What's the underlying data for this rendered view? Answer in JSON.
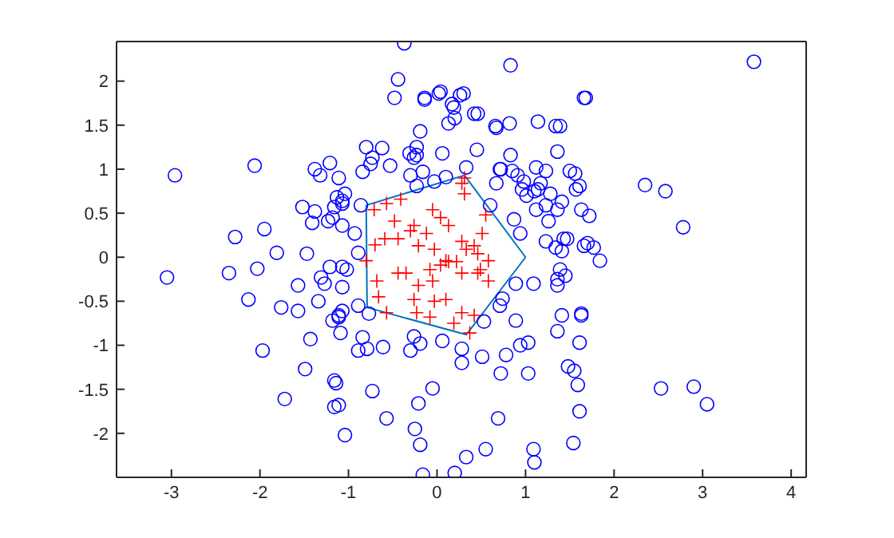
{
  "chart_data": {
    "type": "scatter",
    "xlim": [
      -3.62,
      4.17
    ],
    "ylim": [
      -2.5,
      2.45
    ],
    "xticks": [
      -3,
      -2,
      -1,
      0,
      1,
      2,
      3,
      4
    ],
    "yticks": [
      -2,
      -1.5,
      -1,
      -0.5,
      0,
      0.5,
      1,
      1.5,
      2
    ],
    "grid": false,
    "legend": false,
    "series": [
      {
        "marker": "circle",
        "color": "#0000ff",
        "x": [
          -0.37,
          -0.44,
          0.02,
          -0.14,
          0.26,
          0.83,
          3.58,
          0.42,
          0.13,
          0.66,
          0.19,
          -0.19,
          1.34,
          1.68,
          1.36,
          1.14,
          -0.62,
          -0.8,
          -0.75,
          -0.31,
          -0.53,
          0.06,
          0.45,
          0.83,
          0.72,
          0.85,
          1.23,
          1.5,
          1.57,
          1.17,
          0.98,
          0.67,
          1.1,
          1.28,
          1.01,
          1.23,
          1.36,
          1.63,
          1.72,
          1.23,
          1.34,
          1.47,
          1.7,
          1.77,
          1.84,
          2.35,
          2.58,
          2.78,
          1.39,
          1.36,
          1.63,
          1.61,
          1.55,
          2.53,
          2.9,
          3.05,
          -1.07,
          -0.89,
          -1.11,
          -1.09,
          -0.84,
          -0.89,
          -0.79,
          -0.61,
          -0.26,
          -0.19,
          -0.3,
          0.06,
          0.28,
          0.28,
          0.51,
          0.53,
          0.71,
          0.74,
          0.89,
          0.94,
          1.03,
          0.78,
          0.72,
          1.03,
          0.89,
          1.09,
          1.48,
          1.59,
          1.61,
          1.54,
          1.36,
          1.41,
          1.63,
          1.36,
          1.45,
          -1.14,
          -1.11,
          -0.73,
          -0.57,
          -1.04,
          -0.21,
          -0.05,
          -0.25,
          -0.19,
          0.33,
          0.55,
          0.69,
          1.09,
          1.1,
          -0.16,
          0.2,
          -1.02,
          -0.77,
          -1.07,
          -3.05,
          -2.35,
          -2.03,
          -1.81,
          -1.47,
          -1.21,
          -1.07,
          -1.57,
          -1.31,
          -1.27,
          -1.34,
          -2.13,
          -1.76,
          -1.57,
          -1.18,
          -1.11,
          -1.43,
          -1.97,
          -1.49,
          -1.16,
          -1.72,
          -1.16,
          -2.96,
          -2.06,
          -1.38,
          -1.32,
          -1.21,
          -1.11,
          -1.13,
          -1.07,
          -1.52,
          -1.38,
          -1.16,
          -1.41,
          -1.23,
          -1.18,
          -1.07,
          -2.28,
          -1.95,
          -0.48,
          -0.14,
          0.04,
          0.3,
          0.17,
          0.2,
          0.46,
          0.67,
          0.82,
          1.39,
          1.66,
          -0.73,
          -0.84,
          -0.23,
          -0.23,
          -0.26,
          -0.16,
          -0.3,
          -0.23,
          -0.03,
          0.1,
          0.33,
          0.71,
          0.91,
          0.96,
          1.12,
          1.14,
          1.56,
          1.61,
          1.41,
          1.12,
          1.26,
          0.6,
          0.87,
          0.94,
          1.43,
          1.41,
          1.66,
          -1.04,
          -1.07,
          -0.86,
          -0.93,
          -0.89
        ],
        "values": [
          2.43,
          2.02,
          1.86,
          1.79,
          1.84,
          2.18,
          2.22,
          1.63,
          1.52,
          1.49,
          1.7,
          1.43,
          1.49,
          1.81,
          1.2,
          1.54,
          1.24,
          1.25,
          1.06,
          1.18,
          1.04,
          1.18,
          1.22,
          1.16,
          1.0,
          0.98,
          0.98,
          0.98,
          0.77,
          0.84,
          0.86,
          0.84,
          0.75,
          0.72,
          0.7,
          0.59,
          0.54,
          0.54,
          0.47,
          0.18,
          0.11,
          0.21,
          0.16,
          0.11,
          -0.04,
          0.82,
          0.75,
          0.34,
          -0.14,
          -0.32,
          -0.64,
          -0.97,
          -1.29,
          -1.49,
          -1.47,
          -1.67,
          -0.34,
          -0.55,
          -0.66,
          -0.86,
          -0.91,
          -1.06,
          -1.04,
          -1.02,
          -0.9,
          -0.98,
          -1.06,
          -0.95,
          -1.04,
          -1.2,
          -1.13,
          -0.73,
          -0.55,
          -0.47,
          -0.72,
          -1.0,
          -0.97,
          -1.11,
          -1.32,
          -1.32,
          -0.3,
          -0.3,
          -1.24,
          -1.45,
          -1.75,
          -2.11,
          -0.84,
          -0.66,
          -0.66,
          -0.25,
          -0.21,
          -1.43,
          -1.68,
          -1.52,
          -1.83,
          -2.02,
          -1.66,
          -1.49,
          -1.95,
          -2.13,
          -2.27,
          -2.18,
          -1.83,
          -2.18,
          -2.33,
          -2.47,
          -2.45,
          -0.14,
          -0.64,
          -0.61,
          -0.23,
          -0.18,
          -0.13,
          0.05,
          0.04,
          -0.11,
          -0.11,
          -0.32,
          -0.23,
          -0.3,
          -0.5,
          -0.48,
          -0.57,
          -0.61,
          -0.72,
          -0.68,
          -0.93,
          -1.06,
          -1.27,
          -1.4,
          -1.61,
          -1.7,
          0.93,
          1.04,
          1.0,
          0.93,
          1.07,
          0.9,
          0.68,
          0.64,
          0.57,
          0.52,
          0.57,
          0.39,
          0.41,
          0.45,
          0.36,
          0.23,
          0.32,
          1.81,
          1.81,
          1.88,
          1.86,
          1.74,
          1.58,
          1.63,
          1.47,
          1.52,
          1.49,
          1.81,
          1.13,
          0.97,
          1.25,
          1.16,
          1.13,
          0.97,
          0.93,
          0.81,
          0.86,
          0.91,
          1.02,
          1.0,
          0.93,
          0.77,
          1.02,
          0.77,
          0.95,
          0.81,
          0.63,
          0.54,
          0.41,
          0.59,
          0.43,
          0.27,
          0.21,
          0.07,
          0.13,
          0.72,
          0.61,
          0.59,
          0.27,
          0.05
        ]
      },
      {
        "marker": "cross",
        "color": "#ff0000",
        "x": [
          0.28,
          0.31,
          -0.71,
          -0.57,
          -0.41,
          -0.48,
          -0.26,
          -0.3,
          -0.44,
          -0.12,
          -0.21,
          -0.03,
          0.04,
          0.13,
          -0.05,
          0.28,
          0.42,
          0.51,
          0.46,
          0.33,
          0.55,
          -0.7,
          -0.59,
          0.1,
          0.22,
          -0.8,
          -0.68,
          -0.35,
          -0.21,
          -0.05,
          -0.08,
          0.04,
          0.13,
          0.28,
          0.46,
          0.49,
          0.1,
          -0.03,
          0.28,
          0.42,
          -0.08,
          -0.23,
          -0.57,
          0.19,
          0.37,
          -0.66,
          -0.26,
          -0.44,
          0.58,
          0.58,
          0.31
        ],
        "values": [
          0.84,
          0.72,
          0.54,
          0.61,
          0.66,
          0.41,
          0.36,
          0.3,
          0.21,
          0.27,
          0.13,
          0.09,
          0.45,
          0.36,
          0.54,
          0.18,
          0.13,
          0.27,
          0.04,
          0.09,
          0.48,
          0.14,
          0.21,
          -0.04,
          -0.05,
          -0.04,
          -0.27,
          -0.18,
          -0.32,
          -0.27,
          -0.14,
          -0.09,
          -0.05,
          -0.18,
          -0.18,
          -0.14,
          -0.48,
          -0.5,
          -0.63,
          -0.66,
          -0.68,
          -0.63,
          -0.63,
          -0.75,
          -0.86,
          -0.45,
          -0.48,
          -0.18,
          -0.04,
          -0.27,
          0.9
        ]
      },
      {
        "type": "line",
        "marker": "none",
        "color": "#0072bd",
        "x": [
          -0.8,
          0.31,
          1.0
        ],
        "values": [
          0.59,
          0.93,
          0.0
        ]
      },
      {
        "type": "line",
        "marker": "none",
        "color": "#0072bd",
        "x": [
          -0.8,
          -0.79,
          0.33,
          1.0
        ],
        "values": [
          0.59,
          -0.57,
          -0.88,
          0.0
        ]
      }
    ]
  }
}
